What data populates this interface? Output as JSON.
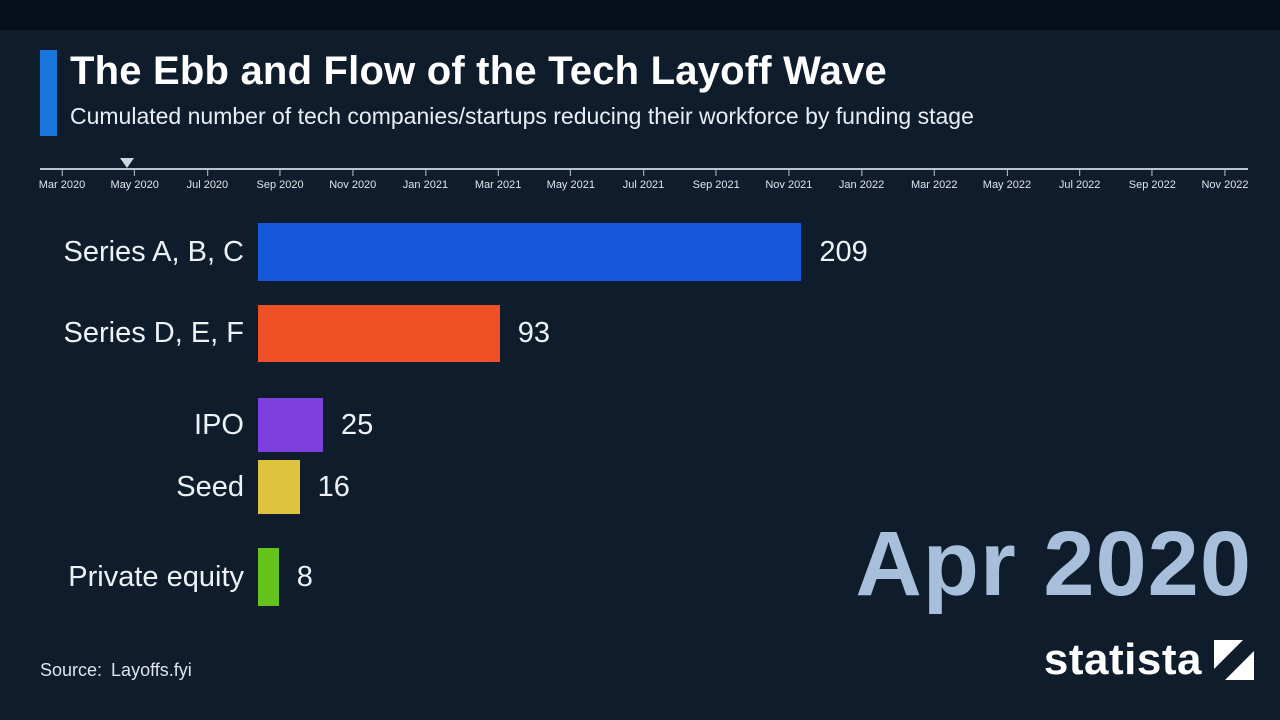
{
  "header": {
    "title": "The Ebb and Flow of the Tech Layoff Wave",
    "subtitle": "Cumulated number of tech companies/startups reducing their workforce by funding stage",
    "accent_color": "#1b76dc"
  },
  "chart_data": {
    "type": "bar",
    "orientation": "horizontal",
    "title": "The Ebb and Flow of the Tech Layoff Wave",
    "subtitle": "Cumulated number of tech companies/startups reducing their workforce by funding stage",
    "categories": [
      "Series A, B, C",
      "Series D, E, F",
      "IPO",
      "Seed",
      "Private equity"
    ],
    "values": [
      209,
      93,
      25,
      16,
      8
    ],
    "colors": [
      "#1557d8",
      "#ee5125",
      "#7d3fdd",
      "#dfc33e",
      "#65c31e"
    ],
    "xlim": [
      0,
      215
    ],
    "grid": false,
    "legend": "none",
    "current_period": "Apr 2020",
    "axis_ticks": [
      "Mar 2020",
      "May 2020",
      "Jul 2020",
      "Sep 2020",
      "Nov 2020",
      "Jan 2021",
      "Mar 2021",
      "May 2021",
      "Jul 2021",
      "Sep 2021",
      "Nov 2021",
      "Jan 2022",
      "Mar 2022",
      "May 2022",
      "Jul 2022",
      "Sep 2022",
      "Nov 2022"
    ]
  },
  "footer": {
    "source_label": "Source:",
    "source_name": "Layoffs.fyi"
  },
  "branding": {
    "logo_text": "statista"
  }
}
